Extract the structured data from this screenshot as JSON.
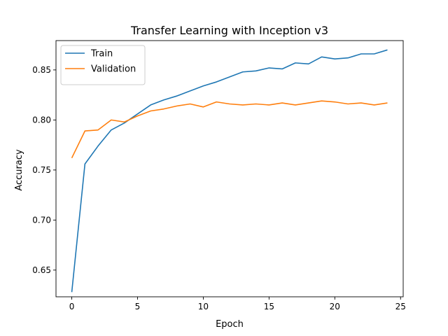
{
  "chart_data": {
    "type": "line",
    "title": "Transfer Learning with Inception v3",
    "xlabel": "Epoch",
    "ylabel": "Accuracy",
    "xlim": [
      -1.2,
      25.2
    ],
    "ylim": [
      0.6233,
      0.8793
    ],
    "x_ticks": [
      0,
      5,
      10,
      15,
      20,
      25
    ],
    "y_ticks": [
      0.65,
      0.7,
      0.75,
      0.8,
      0.85
    ],
    "x_tick_labels": [
      "0",
      "5",
      "10",
      "15",
      "20",
      "25"
    ],
    "y_tick_labels": [
      "0.65",
      "0.70",
      "0.75",
      "0.80",
      "0.85"
    ],
    "grid": false,
    "legend_position": "top-left",
    "x": [
      0,
      1,
      2,
      3,
      4,
      5,
      6,
      7,
      8,
      9,
      10,
      11,
      12,
      13,
      14,
      15,
      16,
      17,
      18,
      19,
      20,
      21,
      22,
      23,
      24
    ],
    "series": [
      {
        "name": "Train",
        "color": "#1f77b4",
        "values": [
          0.628,
          0.756,
          0.774,
          0.79,
          0.797,
          0.806,
          0.815,
          0.82,
          0.824,
          0.829,
          0.834,
          0.838,
          0.843,
          0.848,
          0.849,
          0.852,
          0.851,
          0.857,
          0.856,
          0.863,
          0.861,
          0.862,
          0.866,
          0.866,
          0.87
        ]
      },
      {
        "name": "Validation",
        "color": "#ff7f0e",
        "values": [
          0.762,
          0.789,
          0.79,
          0.8,
          0.798,
          0.804,
          0.809,
          0.811,
          0.814,
          0.816,
          0.813,
          0.818,
          0.816,
          0.815,
          0.816,
          0.815,
          0.817,
          0.815,
          0.817,
          0.819,
          0.818,
          0.816,
          0.817,
          0.815,
          0.817
        ]
      }
    ]
  }
}
